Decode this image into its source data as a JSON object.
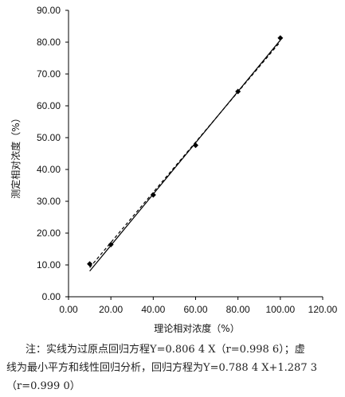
{
  "chart_data": {
    "type": "scatter",
    "xlabel": "理论相对浓度（%）",
    "ylabel": "测定相对浓度（%）",
    "xlim": [
      0,
      120
    ],
    "ylim": [
      0,
      90
    ],
    "x_ticks": [
      "0.00",
      "20.00",
      "40.00",
      "60.00",
      "80.00",
      "100.00",
      "120.00"
    ],
    "y_ticks": [
      "0.00",
      "10.00",
      "20.00",
      "30.00",
      "40.00",
      "50.00",
      "60.00",
      "70.00",
      "80.00",
      "90.00"
    ],
    "grid": false,
    "points": [
      {
        "x": 10,
        "y": 10.3
      },
      {
        "x": 20,
        "y": 16.4
      },
      {
        "x": 40,
        "y": 32.0
      },
      {
        "x": 60,
        "y": 47.6
      },
      {
        "x": 80,
        "y": 64.5
      },
      {
        "x": 100,
        "y": 81.3
      }
    ],
    "lines": [
      {
        "style": "solid",
        "slope": 0.8064,
        "intercept": 0,
        "x_range": [
          10,
          100
        ]
      },
      {
        "style": "dashed",
        "slope": 0.7884,
        "intercept": 1.2873,
        "x_range": [
          10,
          100
        ]
      }
    ]
  },
  "note": {
    "line1": "注：实线为过原点回归方程Y=0.806 4 X（r=0.998 6）；虚",
    "line2": "线为最小平方和线性回归分析，回归方程为Y=0.788 4 X+1.287 3",
    "line3": "（r=0.999 0）"
  }
}
